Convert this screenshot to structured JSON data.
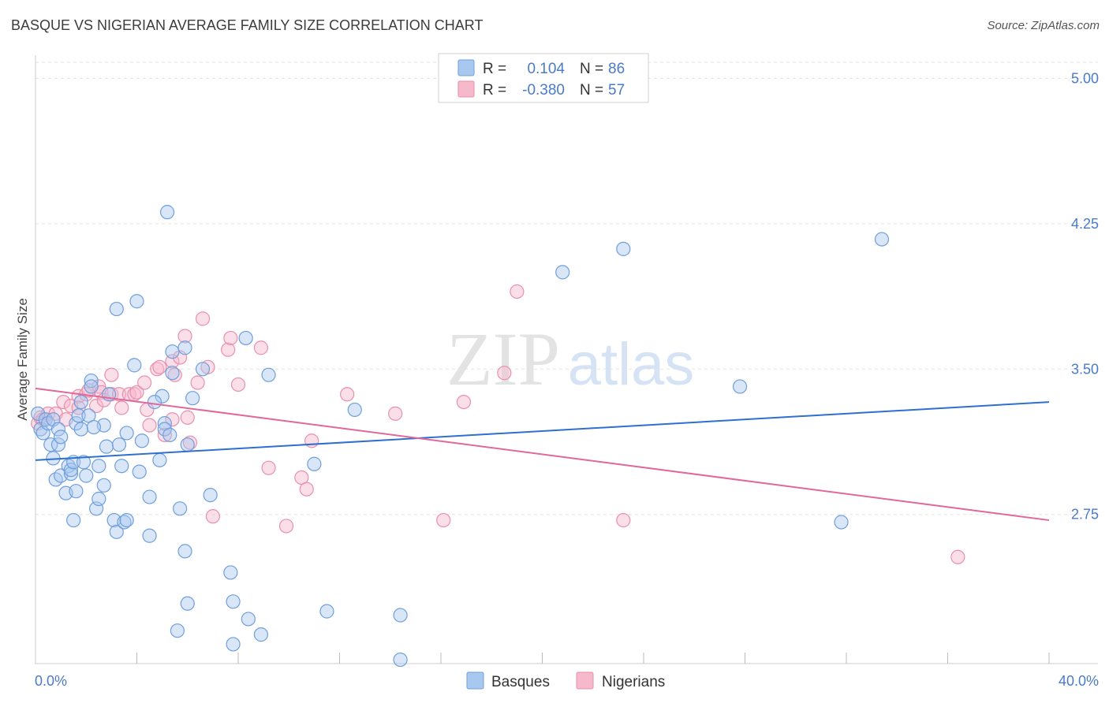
{
  "title": "BASQUE VS NIGERIAN AVERAGE FAMILY SIZE CORRELATION CHART",
  "source": "Source: ZipAtlas.com",
  "watermark": {
    "zip": "ZIP",
    "atlas": "atlas"
  },
  "colors": {
    "basques_fill": "#a9c8f0",
    "basques_stroke": "#6f9fdc",
    "basques_line": "#2f6fcf",
    "nigerians_fill": "#f6b9cb",
    "nigerians_stroke": "#ea8fac",
    "nigerians_line": "#e0689a",
    "tick_text": "#4a7bc8",
    "grid": "#e2e2e2"
  },
  "legend": {
    "rows": [
      {
        "r_label": "R =",
        "r_value": "0.104",
        "n_label": "N =",
        "n_value": "86"
      },
      {
        "r_label": "R =",
        "r_value": "-0.380",
        "n_label": "N =",
        "n_value": "57"
      }
    ]
  },
  "bottom_legend": [
    "Basques",
    "Nigerians"
  ],
  "chart_data": {
    "type": "scatter",
    "title": "BASQUE VS NIGERIAN AVERAGE FAMILY SIZE CORRELATION CHART",
    "xlabel": "",
    "ylabel": "Average Family Size",
    "xlim": [
      0,
      40
    ],
    "ylim": [
      1.98,
      5.12
    ],
    "x_tick_labels": [
      {
        "value": 0,
        "label": "0.0%"
      },
      {
        "value": 40,
        "label": "40.0%"
      }
    ],
    "y_ticks": [
      {
        "value": 5.0,
        "label": "5.00"
      },
      {
        "value": 4.25,
        "label": "4.25"
      },
      {
        "value": 3.5,
        "label": "3.50"
      },
      {
        "value": 2.75,
        "label": "2.75"
      }
    ],
    "x_minor_ticks": [
      4,
      8,
      12,
      16,
      20,
      24,
      28,
      32,
      36,
      40
    ],
    "grid": true,
    "legend_position": "top-center",
    "series": [
      {
        "name": "Basques",
        "r": 0.104,
        "n": 86,
        "trend": {
          "x": [
            0,
            40
          ],
          "y": [
            3.03,
            3.33
          ]
        },
        "points": [
          [
            0.1,
            3.27
          ],
          [
            0.2,
            3.19
          ],
          [
            0.3,
            3.17
          ],
          [
            0.4,
            3.24
          ],
          [
            0.5,
            3.22
          ],
          [
            0.6,
            3.11
          ],
          [
            0.7,
            3.24
          ],
          [
            0.7,
            3.04
          ],
          [
            0.8,
            2.93
          ],
          [
            0.9,
            3.11
          ],
          [
            0.9,
            3.19
          ],
          [
            1.0,
            3.15
          ],
          [
            1.0,
            2.95
          ],
          [
            1.2,
            2.86
          ],
          [
            1.3,
            3.0
          ],
          [
            1.4,
            2.96
          ],
          [
            1.4,
            2.98
          ],
          [
            1.5,
            2.72
          ],
          [
            1.5,
            3.02
          ],
          [
            1.6,
            2.87
          ],
          [
            1.6,
            3.22
          ],
          [
            1.7,
            3.26
          ],
          [
            1.8,
            3.19
          ],
          [
            1.8,
            3.33
          ],
          [
            1.9,
            3.02
          ],
          [
            2.0,
            2.95
          ],
          [
            2.1,
            3.26
          ],
          [
            2.2,
            3.44
          ],
          [
            2.2,
            3.41
          ],
          [
            2.4,
            2.78
          ],
          [
            2.5,
            2.83
          ],
          [
            2.5,
            3.0
          ],
          [
            2.7,
            2.9
          ],
          [
            2.7,
            3.21
          ],
          [
            2.8,
            3.1
          ],
          [
            2.9,
            3.37
          ],
          [
            3.1,
            2.72
          ],
          [
            3.2,
            2.66
          ],
          [
            3.2,
            3.81
          ],
          [
            3.3,
            3.11
          ],
          [
            3.4,
            3.0
          ],
          [
            3.5,
            2.71
          ],
          [
            3.6,
            2.72
          ],
          [
            3.9,
            3.52
          ],
          [
            4.0,
            3.85
          ],
          [
            4.1,
            2.97
          ],
          [
            4.2,
            3.13
          ],
          [
            4.5,
            2.64
          ],
          [
            4.5,
            2.84
          ],
          [
            4.9,
            3.03
          ],
          [
            5.0,
            3.36
          ],
          [
            5.1,
            3.22
          ],
          [
            5.1,
            3.19
          ],
          [
            5.2,
            4.31
          ],
          [
            5.3,
            3.16
          ],
          [
            5.4,
            3.48
          ],
          [
            5.4,
            3.59
          ],
          [
            5.7,
            2.78
          ],
          [
            5.9,
            3.61
          ],
          [
            5.9,
            2.56
          ],
          [
            6.0,
            3.11
          ],
          [
            6.0,
            2.29
          ],
          [
            6.2,
            3.35
          ],
          [
            6.6,
            3.5
          ],
          [
            6.9,
            2.85
          ],
          [
            7.7,
            2.45
          ],
          [
            7.8,
            2.3
          ],
          [
            7.8,
            2.08
          ],
          [
            8.3,
            3.66
          ],
          [
            8.4,
            2.21
          ],
          [
            8.9,
            2.13
          ],
          [
            9.2,
            3.47
          ],
          [
            11.0,
            3.01
          ],
          [
            11.5,
            2.25
          ],
          [
            12.6,
            3.29
          ],
          [
            14.4,
            2.23
          ],
          [
            14.4,
            2.0
          ],
          [
            20.8,
            4.0
          ],
          [
            23.2,
            4.12
          ],
          [
            27.8,
            3.41
          ],
          [
            31.8,
            2.71
          ],
          [
            33.4,
            4.17
          ],
          [
            5.6,
            2.15
          ],
          [
            3.6,
            3.17
          ],
          [
            2.3,
            3.2
          ],
          [
            4.7,
            3.33
          ]
        ]
      },
      {
        "name": "Nigerians",
        "r": -0.38,
        "n": 57,
        "trend": {
          "x": [
            0,
            40
          ],
          "y": [
            3.4,
            2.72
          ]
        },
        "points": [
          [
            0.1,
            3.22
          ],
          [
            0.2,
            3.25
          ],
          [
            0.3,
            3.24
          ],
          [
            0.5,
            3.27
          ],
          [
            0.8,
            3.27
          ],
          [
            1.1,
            3.33
          ],
          [
            1.2,
            3.24
          ],
          [
            1.4,
            3.31
          ],
          [
            1.7,
            3.36
          ],
          [
            1.7,
            3.3
          ],
          [
            2.0,
            3.37
          ],
          [
            2.1,
            3.39
          ],
          [
            2.4,
            3.31
          ],
          [
            2.5,
            3.41
          ],
          [
            2.6,
            3.38
          ],
          [
            2.7,
            3.34
          ],
          [
            3.0,
            3.37
          ],
          [
            3.0,
            3.47
          ],
          [
            3.3,
            3.37
          ],
          [
            3.4,
            3.3
          ],
          [
            3.7,
            3.37
          ],
          [
            3.9,
            3.37
          ],
          [
            4.0,
            3.38
          ],
          [
            4.3,
            3.43
          ],
          [
            4.4,
            3.29
          ],
          [
            4.5,
            3.21
          ],
          [
            4.8,
            3.5
          ],
          [
            4.9,
            3.51
          ],
          [
            5.1,
            3.16
          ],
          [
            5.4,
            3.24
          ],
          [
            5.4,
            3.54
          ],
          [
            5.5,
            3.47
          ],
          [
            5.7,
            3.56
          ],
          [
            5.9,
            3.67
          ],
          [
            6.0,
            3.25
          ],
          [
            6.1,
            3.12
          ],
          [
            6.4,
            3.43
          ],
          [
            6.6,
            3.76
          ],
          [
            6.8,
            3.51
          ],
          [
            7.0,
            2.74
          ],
          [
            7.6,
            3.6
          ],
          [
            7.7,
            3.66
          ],
          [
            8.0,
            3.42
          ],
          [
            8.9,
            3.61
          ],
          [
            9.2,
            2.99
          ],
          [
            9.9,
            2.69
          ],
          [
            10.5,
            2.94
          ],
          [
            10.7,
            2.88
          ],
          [
            10.9,
            3.13
          ],
          [
            12.3,
            3.37
          ],
          [
            14.2,
            3.27
          ],
          [
            16.1,
            2.72
          ],
          [
            16.9,
            3.33
          ],
          [
            18.5,
            3.48
          ],
          [
            19.0,
            3.9
          ],
          [
            23.2,
            2.72
          ],
          [
            36.4,
            2.53
          ]
        ]
      }
    ]
  }
}
